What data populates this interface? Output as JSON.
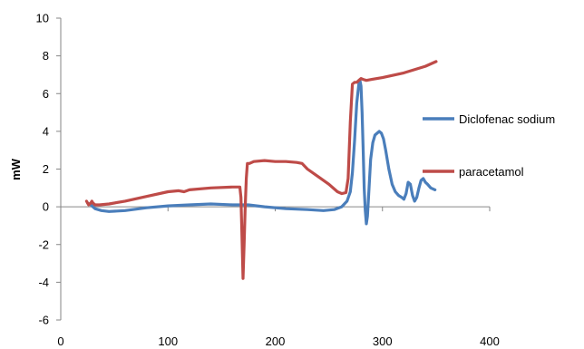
{
  "chart_data": {
    "type": "line",
    "title": "",
    "xlabel": "",
    "ylabel": "mW",
    "xlim": [
      0,
      400
    ],
    "ylim": [
      -6,
      10
    ],
    "x_ticks": [
      0,
      100,
      200,
      300,
      400
    ],
    "y_ticks": [
      -6,
      -4,
      -2,
      0,
      2,
      4,
      6,
      8,
      10
    ],
    "grid": false,
    "legend_position": "right",
    "series": [
      {
        "name": "Diclofenac sodium",
        "color": "#4a7ebb",
        "x": [
          25,
          28,
          32,
          38,
          45,
          60,
          80,
          100,
          120,
          140,
          160,
          175,
          190,
          210,
          230,
          245,
          255,
          262,
          267,
          270,
          272,
          274,
          276,
          278,
          279,
          280,
          281,
          282,
          283,
          284,
          285,
          286,
          287,
          289,
          291,
          293,
          295,
          297,
          299,
          301,
          303,
          306,
          309,
          312,
          315,
          318,
          320,
          322,
          324,
          326,
          328,
          330,
          332,
          334,
          336,
          338,
          340,
          342,
          345,
          349
        ],
        "y": [
          0.2,
          0.1,
          -0.1,
          -0.2,
          -0.25,
          -0.2,
          -0.05,
          0.05,
          0.1,
          0.15,
          0.1,
          0.1,
          0.0,
          -0.1,
          -0.15,
          -0.2,
          -0.15,
          0.0,
          0.3,
          0.8,
          1.8,
          3.5,
          5.5,
          6.5,
          6.7,
          6.4,
          5.0,
          3.0,
          1.0,
          -0.2,
          -0.9,
          -0.5,
          0.5,
          2.5,
          3.4,
          3.8,
          3.9,
          4.0,
          3.9,
          3.6,
          3.0,
          2.0,
          1.2,
          0.8,
          0.6,
          0.5,
          0.4,
          0.7,
          1.3,
          1.2,
          0.6,
          0.3,
          0.5,
          1.0,
          1.4,
          1.5,
          1.3,
          1.2,
          1.0,
          0.9
        ]
      },
      {
        "name": "paracetamol",
        "color": "#be4b48",
        "x": [
          24,
          26,
          28,
          29,
          30,
          32,
          36,
          45,
          60,
          80,
          100,
          110,
          115,
          120,
          140,
          160,
          167,
          168,
          169,
          170,
          171,
          172,
          173,
          174,
          176,
          180,
          190,
          200,
          210,
          220,
          225,
          230,
          240,
          250,
          258,
          262,
          266,
          268,
          270,
          272,
          274,
          276,
          278,
          280,
          282,
          285,
          290,
          300,
          320,
          340,
          350
        ],
        "y": [
          0.3,
          0.1,
          0.2,
          0.3,
          0.2,
          0.1,
          0.1,
          0.15,
          0.3,
          0.55,
          0.8,
          0.85,
          0.8,
          0.9,
          1.0,
          1.05,
          1.05,
          0.5,
          -1.5,
          -3.8,
          -2.0,
          0.0,
          1.5,
          2.3,
          2.3,
          2.4,
          2.45,
          2.4,
          2.4,
          2.35,
          2.3,
          2.0,
          1.6,
          1.2,
          0.8,
          0.7,
          0.75,
          1.5,
          4.5,
          6.5,
          6.6,
          6.6,
          6.7,
          6.8,
          6.75,
          6.7,
          6.75,
          6.85,
          7.1,
          7.45,
          7.7
        ]
      }
    ]
  }
}
